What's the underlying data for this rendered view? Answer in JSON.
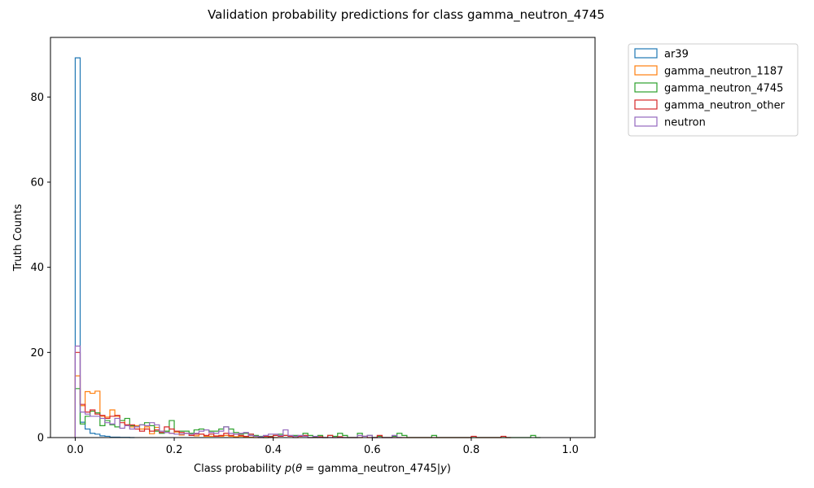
{
  "chart_data": {
    "type": "histogram",
    "title": "Validation probability predictions for class gamma_neutron_4745",
    "xlabel": "Class probability p(θ = gamma_neutron_4745|y)",
    "ylabel": "Truth Counts",
    "xlim": [
      -0.05,
      1.05
    ],
    "ylim": [
      0,
      94
    ],
    "xticks": [
      0.0,
      0.2,
      0.4,
      0.6,
      0.8,
      1.0
    ],
    "xtick_labels": [
      "0.0",
      "0.2",
      "0.4",
      "0.6",
      "0.8",
      "1.0"
    ],
    "yticks": [
      0,
      20,
      40,
      60,
      80
    ],
    "ytick_labels": [
      "0",
      "20",
      "40",
      "60",
      "80"
    ],
    "grid": false,
    "legend_placement": "outside-top-right",
    "bin_width": 0.01,
    "series": [
      {
        "name": "ar39",
        "color": "#1f77b4",
        "points": [
          [
            0.0,
            89.2
          ],
          [
            0.01,
            3.6
          ],
          [
            0.02,
            2.0
          ],
          [
            0.03,
            1.0
          ],
          [
            0.04,
            0.8
          ],
          [
            0.05,
            0.4
          ],
          [
            0.06,
            0.3
          ],
          [
            0.07,
            0.1
          ],
          [
            0.08,
            0.1
          ],
          [
            0.09,
            0.05
          ],
          [
            0.1,
            0.05
          ],
          [
            0.11,
            0
          ]
        ]
      },
      {
        "name": "gamma_neutron_1187",
        "color": "#ff7f0e",
        "points": [
          [
            0.0,
            14.5
          ],
          [
            0.01,
            7.5
          ],
          [
            0.02,
            10.8
          ],
          [
            0.03,
            10.4
          ],
          [
            0.04,
            10.9
          ],
          [
            0.05,
            5.0
          ],
          [
            0.06,
            4.8
          ],
          [
            0.07,
            6.5
          ],
          [
            0.08,
            5.0
          ],
          [
            0.09,
            4.0
          ],
          [
            0.1,
            3.0
          ],
          [
            0.11,
            2.5
          ],
          [
            0.12,
            2.8
          ],
          [
            0.13,
            2.0
          ],
          [
            0.14,
            2.5
          ],
          [
            0.15,
            0.9
          ],
          [
            0.16,
            2.4
          ],
          [
            0.17,
            1.5
          ],
          [
            0.18,
            1.5
          ],
          [
            0.19,
            1.0
          ],
          [
            0.2,
            1.3
          ],
          [
            0.21,
            0.6
          ],
          [
            0.22,
            1.0
          ],
          [
            0.23,
            0.5
          ],
          [
            0.24,
            0.4
          ],
          [
            0.25,
            0.8
          ],
          [
            0.26,
            0.3
          ],
          [
            0.27,
            0.3
          ],
          [
            0.28,
            0.4
          ],
          [
            0.29,
            0.3
          ],
          [
            0.3,
            0.5
          ],
          [
            0.31,
            0.3
          ],
          [
            0.32,
            0.2
          ],
          [
            0.33,
            0.3
          ],
          [
            0.34,
            0.2
          ],
          [
            0.35,
            0.1
          ],
          [
            0.36,
            0.0
          ],
          [
            0.37,
            0.1
          ],
          [
            0.38,
            0.0
          ],
          [
            0.39,
            0.1
          ],
          [
            0.4,
            0.0
          ]
        ]
      },
      {
        "name": "gamma_neutron_4745",
        "color": "#2ca02c",
        "points": [
          [
            0.0,
            11.5
          ],
          [
            0.01,
            3.2
          ],
          [
            0.02,
            5.0
          ],
          [
            0.03,
            6.2
          ],
          [
            0.04,
            5.8
          ],
          [
            0.05,
            2.8
          ],
          [
            0.06,
            4.0
          ],
          [
            0.07,
            3.0
          ],
          [
            0.08,
            2.5
          ],
          [
            0.09,
            4.0
          ],
          [
            0.1,
            4.5
          ],
          [
            0.11,
            2.8
          ],
          [
            0.12,
            2.5
          ],
          [
            0.13,
            3.0
          ],
          [
            0.14,
            3.5
          ],
          [
            0.15,
            2.8
          ],
          [
            0.16,
            1.5
          ],
          [
            0.17,
            1.0
          ],
          [
            0.18,
            1.5
          ],
          [
            0.19,
            4.0
          ],
          [
            0.2,
            1.5
          ],
          [
            0.21,
            1.5
          ],
          [
            0.22,
            1.5
          ],
          [
            0.23,
            1.0
          ],
          [
            0.24,
            1.8
          ],
          [
            0.25,
            2.0
          ],
          [
            0.26,
            1.8
          ],
          [
            0.27,
            1.5
          ],
          [
            0.28,
            1.5
          ],
          [
            0.29,
            2.0
          ],
          [
            0.3,
            2.5
          ],
          [
            0.31,
            2.0
          ],
          [
            0.32,
            1.2
          ],
          [
            0.33,
            0.8
          ],
          [
            0.34,
            1.0
          ],
          [
            0.35,
            0.8
          ],
          [
            0.36,
            0.5
          ],
          [
            0.37,
            0.3
          ],
          [
            0.38,
            0.0
          ],
          [
            0.39,
            0.3
          ],
          [
            0.4,
            0.5
          ],
          [
            0.41,
            0.8
          ],
          [
            0.42,
            0.5
          ],
          [
            0.43,
            0.3
          ],
          [
            0.44,
            0.5
          ],
          [
            0.45,
            0.3
          ],
          [
            0.46,
            1.0
          ],
          [
            0.47,
            0.5
          ],
          [
            0.48,
            0.2
          ],
          [
            0.49,
            0.5
          ],
          [
            0.5,
            0.0
          ],
          [
            0.51,
            0.5
          ],
          [
            0.52,
            0.3
          ],
          [
            0.53,
            1.0
          ],
          [
            0.54,
            0.5
          ],
          [
            0.55,
            0.0
          ],
          [
            0.56,
            0.0
          ],
          [
            0.57,
            1.0
          ],
          [
            0.58,
            0.3
          ],
          [
            0.59,
            0.5
          ],
          [
            0.6,
            0.0
          ],
          [
            0.61,
            0.3
          ],
          [
            0.62,
            0.0
          ],
          [
            0.63,
            0.0
          ],
          [
            0.64,
            0.3
          ],
          [
            0.65,
            1.0
          ],
          [
            0.66,
            0.5
          ],
          [
            0.67,
            0.0
          ],
          [
            0.72,
            0.5
          ],
          [
            0.73,
            0.0
          ],
          [
            0.92,
            0.5
          ],
          [
            0.93,
            0.0
          ]
        ]
      },
      {
        "name": "gamma_neutron_other",
        "color": "#d62728",
        "points": [
          [
            0.0,
            20.0
          ],
          [
            0.01,
            7.8
          ],
          [
            0.02,
            6.0
          ],
          [
            0.03,
            6.5
          ],
          [
            0.04,
            5.5
          ],
          [
            0.05,
            5.2
          ],
          [
            0.06,
            4.5
          ],
          [
            0.07,
            5.0
          ],
          [
            0.08,
            5.2
          ],
          [
            0.09,
            3.5
          ],
          [
            0.1,
            3.0
          ],
          [
            0.11,
            3.0
          ],
          [
            0.12,
            2.0
          ],
          [
            0.13,
            1.5
          ],
          [
            0.14,
            2.0
          ],
          [
            0.15,
            1.5
          ],
          [
            0.16,
            1.8
          ],
          [
            0.17,
            1.2
          ],
          [
            0.18,
            2.5
          ],
          [
            0.19,
            2.0
          ],
          [
            0.2,
            1.5
          ],
          [
            0.21,
            1.2
          ],
          [
            0.22,
            1.0
          ],
          [
            0.23,
            0.5
          ],
          [
            0.24,
            0.8
          ],
          [
            0.25,
            0.8
          ],
          [
            0.26,
            0.5
          ],
          [
            0.27,
            0.8
          ],
          [
            0.28,
            0.3
          ],
          [
            0.29,
            0.5
          ],
          [
            0.3,
            1.0
          ],
          [
            0.31,
            0.5
          ],
          [
            0.32,
            0.8
          ],
          [
            0.33,
            0.5
          ],
          [
            0.34,
            0.3
          ],
          [
            0.35,
            0.8
          ],
          [
            0.36,
            0.3
          ],
          [
            0.37,
            0.0
          ],
          [
            0.38,
            0.3
          ],
          [
            0.39,
            0.2
          ],
          [
            0.4,
            0.5
          ],
          [
            0.41,
            0.3
          ],
          [
            0.42,
            0.5
          ],
          [
            0.43,
            0.3
          ],
          [
            0.44,
            0.0
          ],
          [
            0.45,
            0.3
          ],
          [
            0.46,
            0.5
          ],
          [
            0.47,
            0.0
          ],
          [
            0.48,
            0.0
          ],
          [
            0.49,
            0.2
          ],
          [
            0.5,
            0.0
          ],
          [
            0.51,
            0.5
          ],
          [
            0.52,
            0.0
          ],
          [
            0.53,
            0.2
          ],
          [
            0.54,
            0.0
          ],
          [
            0.58,
            0.3
          ],
          [
            0.59,
            0.0
          ],
          [
            0.61,
            0.5
          ],
          [
            0.62,
            0.0
          ],
          [
            0.8,
            0.3
          ],
          [
            0.81,
            0.0
          ],
          [
            0.86,
            0.3
          ],
          [
            0.87,
            0.0
          ]
        ]
      },
      {
        "name": "neutron",
        "color": "#9467bd",
        "points": [
          [
            0.0,
            21.5
          ],
          [
            0.01,
            6.0
          ],
          [
            0.02,
            5.5
          ],
          [
            0.03,
            5.0
          ],
          [
            0.04,
            5.0
          ],
          [
            0.05,
            4.5
          ],
          [
            0.06,
            3.5
          ],
          [
            0.07,
            3.2
          ],
          [
            0.08,
            4.5
          ],
          [
            0.09,
            2.2
          ],
          [
            0.1,
            2.8
          ],
          [
            0.11,
            2.0
          ],
          [
            0.12,
            2.5
          ],
          [
            0.13,
            3.0
          ],
          [
            0.14,
            2.8
          ],
          [
            0.15,
            3.5
          ],
          [
            0.16,
            3.0
          ],
          [
            0.17,
            1.5
          ],
          [
            0.18,
            1.2
          ],
          [
            0.19,
            1.0
          ],
          [
            0.2,
            0.8
          ],
          [
            0.21,
            0.8
          ],
          [
            0.22,
            1.0
          ],
          [
            0.23,
            0.8
          ],
          [
            0.24,
            1.0
          ],
          [
            0.25,
            1.5
          ],
          [
            0.26,
            1.8
          ],
          [
            0.27,
            1.2
          ],
          [
            0.28,
            1.0
          ],
          [
            0.29,
            1.5
          ],
          [
            0.3,
            2.5
          ],
          [
            0.31,
            1.0
          ],
          [
            0.32,
            0.8
          ],
          [
            0.33,
            1.0
          ],
          [
            0.34,
            1.2
          ],
          [
            0.35,
            0.5
          ],
          [
            0.36,
            0.3
          ],
          [
            0.37,
            0.2
          ],
          [
            0.38,
            0.5
          ],
          [
            0.39,
            0.8
          ],
          [
            0.4,
            0.8
          ],
          [
            0.41,
            0.5
          ],
          [
            0.42,
            1.8
          ],
          [
            0.43,
            0.5
          ],
          [
            0.44,
            0.3
          ],
          [
            0.45,
            0.5
          ],
          [
            0.46,
            0.3
          ],
          [
            0.47,
            0.0
          ],
          [
            0.48,
            0.3
          ],
          [
            0.49,
            0.0
          ],
          [
            0.57,
            0.5
          ],
          [
            0.58,
            0.3
          ],
          [
            0.59,
            0.5
          ],
          [
            0.6,
            0.0
          ],
          [
            0.64,
            0.5
          ],
          [
            0.65,
            0.0
          ]
        ]
      }
    ]
  }
}
